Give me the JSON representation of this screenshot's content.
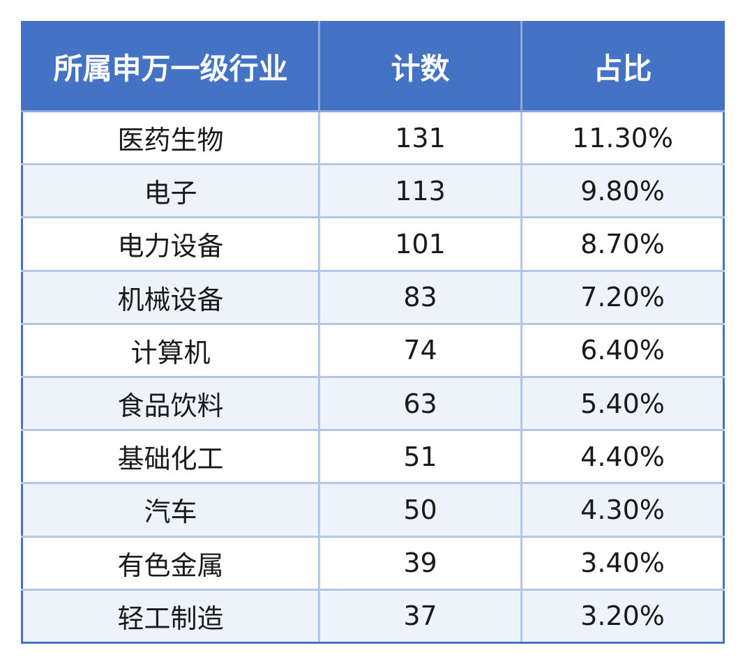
{
  "table": {
    "headers": [
      "所属申万一级行业",
      "计数",
      "占比"
    ],
    "rows": [
      [
        "医药生物",
        "131",
        "11.30%"
      ],
      [
        "电子",
        "113",
        "9.80%"
      ],
      [
        "电力设备",
        "101",
        "8.70%"
      ],
      [
        "机械设备",
        "83",
        "7.20%"
      ],
      [
        "计算机",
        "74",
        "6.40%"
      ],
      [
        "食品饮料",
        "63",
        "5.40%"
      ],
      [
        "基础化工",
        "51",
        "4.40%"
      ],
      [
        "汽车",
        "50",
        "4.30%"
      ],
      [
        "有色金属",
        "39",
        "3.40%"
      ],
      [
        "轻工制造",
        "37",
        "3.20%"
      ]
    ]
  },
  "colors": {
    "header_bg": "#4472c4",
    "header_text": "#ffffff",
    "grid": "#b4c6e7",
    "stripe": "#eef2f9"
  }
}
